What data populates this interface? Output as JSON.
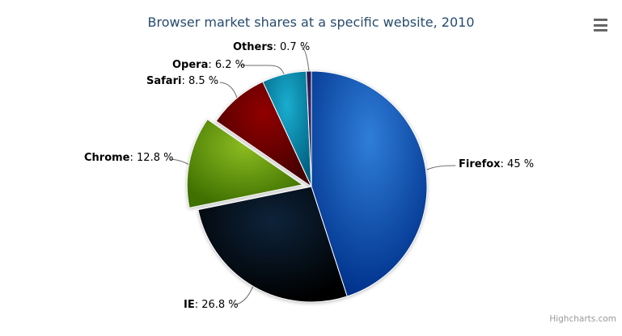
{
  "title": {
    "text": "Browser market shares at a specific website, 2010",
    "color": "#274b6d"
  },
  "credits": {
    "label": "Highcharts.com",
    "color": "#999999"
  },
  "export_menu": {
    "icon": "hamburger-menu-icon"
  },
  "chart_data": {
    "type": "pie",
    "title": "Browser market shares at a specific website, 2010",
    "unit": "%",
    "start_angle_deg": 0,
    "direction": "clockwise",
    "legend": "none",
    "label_format": "{name}: {value} %",
    "points": [
      {
        "name": "Firefox",
        "value": 45,
        "value_label": "45 %",
        "color": "#2f7ed8",
        "sliced": false
      },
      {
        "name": "IE",
        "value": 26.8,
        "value_label": "26.8 %",
        "color": "#0d233a",
        "sliced": false
      },
      {
        "name": "Chrome",
        "value": 12.8,
        "value_label": "12.8 %",
        "color": "#8bbc21",
        "sliced": true
      },
      {
        "name": "Safari",
        "value": 8.5,
        "value_label": "8.5 %",
        "color": "#910000",
        "sliced": false
      },
      {
        "name": "Opera",
        "value": 6.2,
        "value_label": "6.2 %",
        "color": "#1aadce",
        "sliced": false
      },
      {
        "name": "Others",
        "value": 0.7,
        "value_label": "0.7 %",
        "color": "#492970",
        "sliced": false
      }
    ],
    "gradient": {
      "type": "radial",
      "cx": 0.5,
      "cy": 0.3,
      "r": 0.7,
      "edge_brighten": -0.3
    }
  }
}
